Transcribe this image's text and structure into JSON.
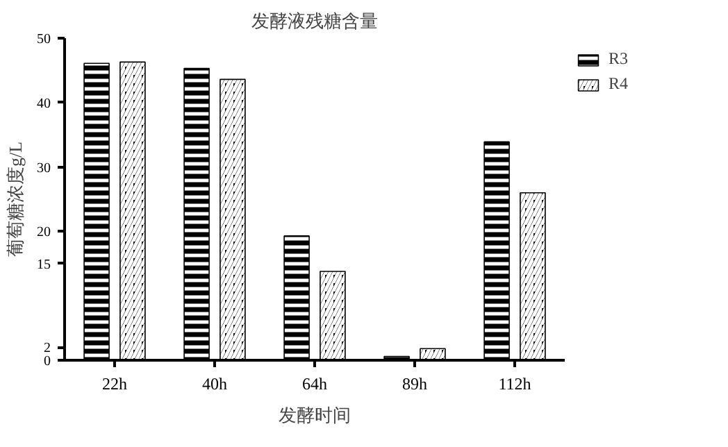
{
  "chart_data": {
    "type": "bar",
    "title": "发酵液残糖含量",
    "xlabel": "发酵时间",
    "ylabel": "葡萄糖浓度g/L",
    "categories": [
      "22h",
      "40h",
      "64h",
      "89h",
      "112h"
    ],
    "ylim": [
      0,
      50
    ],
    "yticks": [
      0,
      2,
      15,
      20,
      30,
      40,
      50
    ],
    "grid": false,
    "legend": "right",
    "series": [
      {
        "name": "R3",
        "color": "#000000",
        "values": [
          46.1,
          45.3,
          19.3,
          0.6,
          33.9
        ]
      },
      {
        "name": "R4",
        "color": "#000000",
        "values": [
          46.3,
          43.6,
          13.8,
          1.8,
          26.0
        ]
      }
    ]
  }
}
